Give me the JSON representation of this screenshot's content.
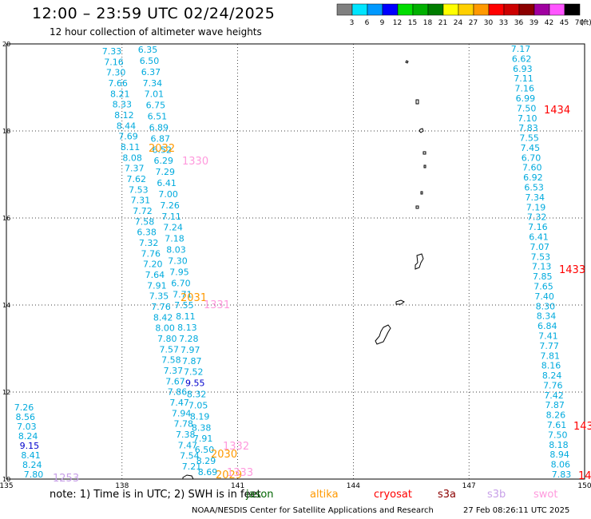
{
  "header": {
    "title": "12:00 – 23:59 UTC 02/24/2025",
    "subtitle": "12 hour collection of altimeter wave heights"
  },
  "legend": {
    "unit": "(ft)",
    "bins": [
      {
        "label": "3",
        "color": "#808080"
      },
      {
        "label": "6",
        "color": "#00e5ff"
      },
      {
        "label": "9",
        "color": "#0099ff"
      },
      {
        "label": "12",
        "color": "#0000ff"
      },
      {
        "label": "15",
        "color": "#00dd00"
      },
      {
        "label": "18",
        "color": "#00b000"
      },
      {
        "label": "21",
        "color": "#007d00"
      },
      {
        "label": "24",
        "color": "#ffff00"
      },
      {
        "label": "27",
        "color": "#ffd000"
      },
      {
        "label": "30",
        "color": "#ff9900"
      },
      {
        "label": "33",
        "color": "#ff0000"
      },
      {
        "label": "36",
        "color": "#cc0000"
      },
      {
        "label": "39",
        "color": "#8b0000"
      },
      {
        "label": "42",
        "color": "#a000a0"
      },
      {
        "label": "45",
        "color": "#ff55ff"
      },
      {
        "label": "70",
        "color": "#000000"
      }
    ]
  },
  "axes": {
    "lon_ticks": [
      "135",
      "138",
      "141",
      "144",
      "147",
      "150"
    ],
    "lat_ticks": [
      "20",
      "18",
      "16",
      "14",
      "12",
      "10"
    ]
  },
  "colors": {
    "jason": "#006400",
    "altika": "#ff9900",
    "cryosat": "#ff0000",
    "s3a": "#8b0000",
    "s3b": "#c8a0e8",
    "swot": "#ff99dd",
    "value": "#00aadd",
    "value_dark": "#0000cc"
  },
  "tracks": [
    {
      "name": "track-west-far",
      "values": [
        "7.26",
        "8.56",
        "7.03",
        "8.24",
        "9.15",
        "8.41",
        "8.24",
        "7.80"
      ],
      "dark": [
        4
      ]
    },
    {
      "name": "track-west-a",
      "values": [
        "7.33",
        "7.16",
        "7.30",
        "7.66",
        "8.21",
        "8.33",
        "8.12",
        "8.44",
        "7.69",
        "8.11",
        "8.08",
        "7.37",
        "7.62",
        "7.53",
        "7.31",
        "7.72",
        "7.58",
        "6.38",
        "7.32",
        "7.76",
        "7.20",
        "7.64",
        "7.91",
        "7.35",
        "7.76",
        "8.42",
        "8.00",
        "7.80",
        "7.57",
        "7.58",
        "7.37",
        "7.67",
        "7.86",
        "7.47",
        "7.94",
        "7.78",
        "7.38",
        "7.47",
        "7.54",
        "7.21"
      ],
      "dark": []
    },
    {
      "name": "track-west-b",
      "values": [
        "6.35",
        "6.50",
        "6.37",
        "7.34",
        "7.01",
        "6.75",
        "6.51",
        "6.89",
        "6.87",
        "6.52",
        "6.29",
        "7.29",
        "6.41",
        "7.00",
        "7.26",
        "7.11",
        "7.24",
        "7.18",
        "8.03",
        "7.30",
        "7.95",
        "6.70",
        "7.71",
        "7.55",
        "8.11",
        "8.13",
        "7.28",
        "7.97",
        "7.87",
        "7.52",
        "9.55",
        "8.32",
        "7.05",
        "8.19",
        "8.38",
        "7.91",
        "6.50",
        "8.29",
        "8.69"
      ],
      "dark": [
        30
      ]
    },
    {
      "name": "track-east",
      "values": [
        "7.17",
        "6.62",
        "6.93",
        "7.11",
        "7.16",
        "6.99",
        "7.50",
        "7.10",
        "7.83",
        "7.55",
        "7.45",
        "6.70",
        "7.60",
        "6.92",
        "6.53",
        "7.34",
        "7.19",
        "7.32",
        "7.16",
        "6.41",
        "7.07",
        "7.53",
        "7.13",
        "7.85",
        "7.65",
        "7.40",
        "8.30",
        "8.34",
        "6.84",
        "7.41",
        "7.77",
        "7.81",
        "8.16",
        "8.24",
        "7.76",
        "7.42",
        "7.87",
        "8.26",
        "7.61",
        "7.50",
        "8.18",
        "8.94",
        "8.06",
        "7.83"
      ],
      "dark": []
    }
  ],
  "pass_times": [
    {
      "label": "2032",
      "sat": "altika"
    },
    {
      "label": "1330",
      "sat": "swot"
    },
    {
      "label": "2031",
      "sat": "altika"
    },
    {
      "label": "1331",
      "sat": "swot"
    },
    {
      "label": "1332",
      "sat": "swot"
    },
    {
      "label": "2030",
      "sat": "altika"
    },
    {
      "label": "2029",
      "sat": "altika"
    },
    {
      "label": "1333",
      "sat": "swot"
    },
    {
      "label": "1253",
      "sat": "s3b"
    },
    {
      "label": "1434",
      "sat": "cryosat"
    },
    {
      "label": "1433",
      "sat": "cryosat"
    },
    {
      "label": "143",
      "sat": "cryosat"
    },
    {
      "label": "14",
      "sat": "cryosat"
    }
  ],
  "footer": {
    "note": "note: 1) Time is in UTC; 2) SWH is in feet",
    "sats": {
      "jason": "jason",
      "altika": "altika",
      "cryosat": "cryosat",
      "s3a": "s3a",
      "s3b": "s3b",
      "swot": "swot"
    },
    "credit": "NOAA/NESDIS Center for Satellite Applications and Research",
    "timestamp": "27 Feb 08:26:11 UTC 2025"
  }
}
